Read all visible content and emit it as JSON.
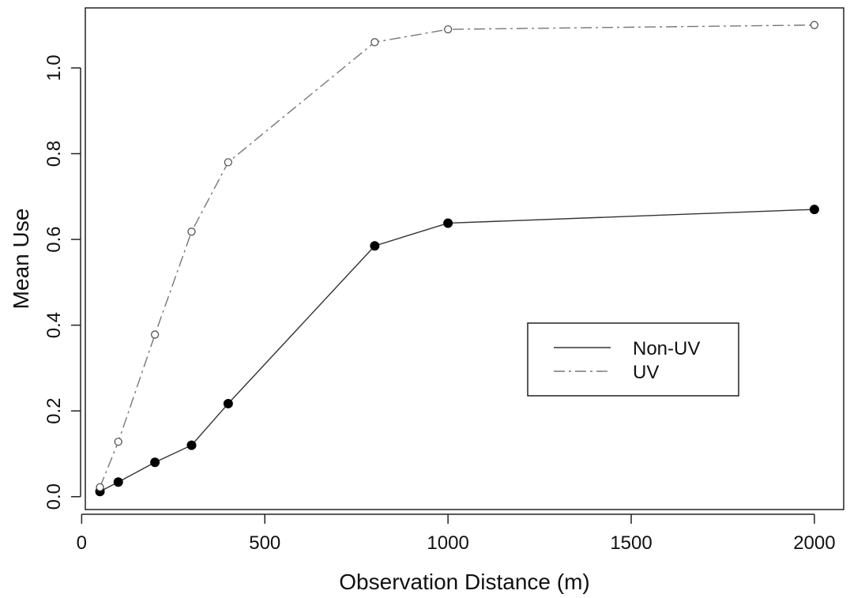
{
  "chart_data": {
    "type": "line",
    "xlabel": "Observation Distance (m)",
    "ylabel": "Mean Use",
    "xlim": [
      10,
      2080
    ],
    "ylim": [
      -0.03,
      1.14
    ],
    "xticks": [
      0,
      500,
      1000,
      1500,
      2000
    ],
    "xtick_labels": [
      "0",
      "500",
      "1000",
      "1500",
      "2000"
    ],
    "yticks": [
      0.0,
      0.2,
      0.4,
      0.6,
      0.8,
      1.0
    ],
    "ytick_labels": [
      "0.0",
      "0.2",
      "0.4",
      "0.6",
      "0.8",
      "1.0"
    ],
    "grid": false,
    "legend_position": "center-right",
    "series": [
      {
        "name": "Non-UV",
        "line_style": "solid",
        "marker": "filled-circle",
        "color": "#333333",
        "x": [
          50,
          100,
          200,
          300,
          400,
          800,
          1000,
          2000
        ],
        "y": [
          0.012,
          0.034,
          0.08,
          0.12,
          0.217,
          0.585,
          0.638,
          0.67
        ]
      },
      {
        "name": "UV",
        "line_style": "dash-dot",
        "marker": "open-circle",
        "color": "#777777",
        "x": [
          50,
          100,
          200,
          300,
          400,
          800,
          1000,
          2000
        ],
        "y": [
          0.022,
          0.128,
          0.378,
          0.618,
          0.78,
          1.06,
          1.09,
          1.1
        ]
      }
    ]
  }
}
